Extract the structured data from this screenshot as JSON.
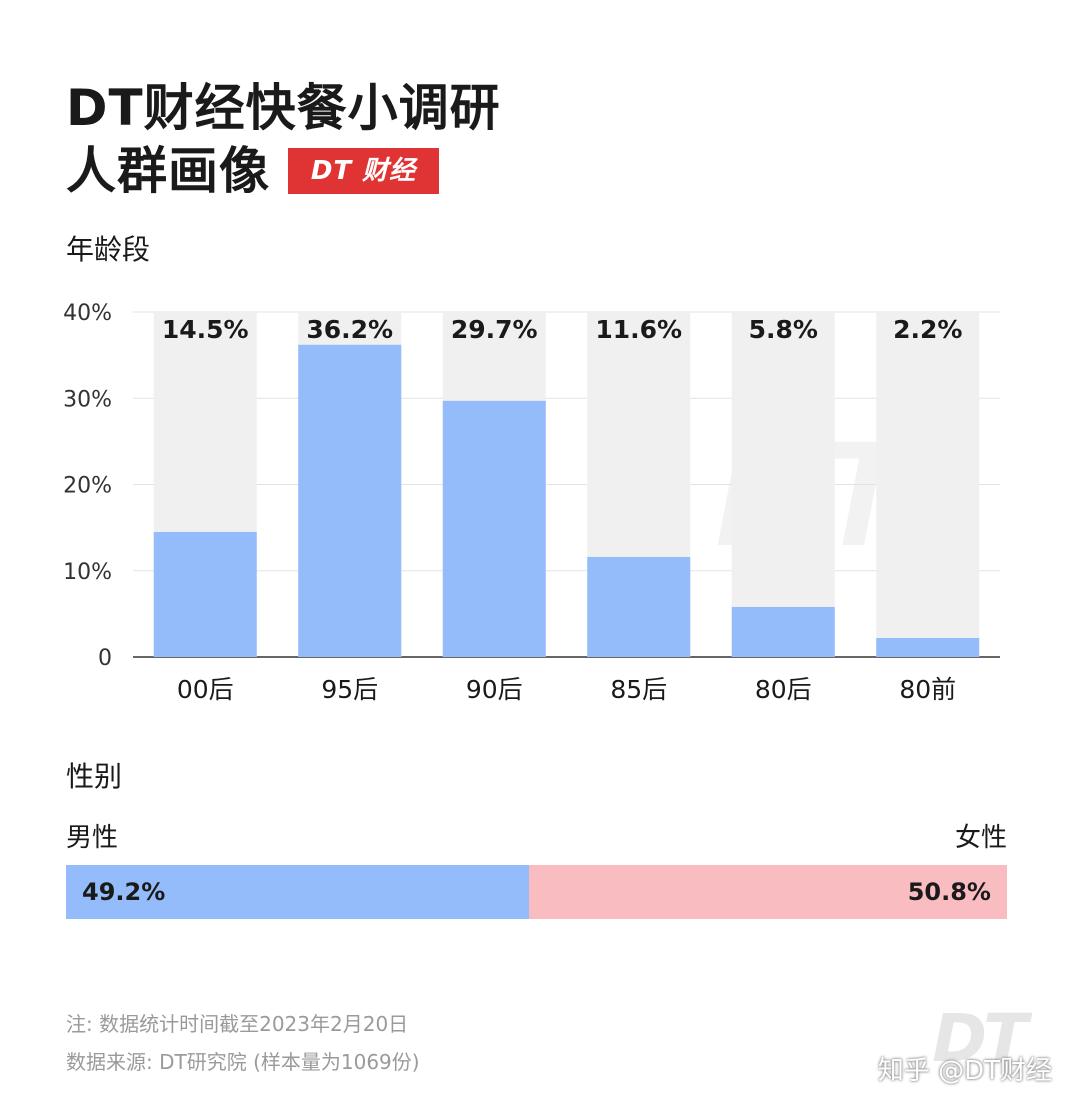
{
  "title": {
    "line1": "DT财经快餐小调研",
    "line2": "人群画像",
    "badge": "DT 财经"
  },
  "age_section_label": "年龄段",
  "gender_section_label": "性别",
  "colors": {
    "bar": "#94bbfa",
    "bar_track": "#f0f0f0",
    "male": "#94bbfa",
    "female": "#f9bcc0",
    "brand_red": "#e03434"
  },
  "chart_data": {
    "type": "bar",
    "categories": [
      "00后",
      "95后",
      "90后",
      "85后",
      "80后",
      "80前"
    ],
    "values": [
      14.5,
      36.2,
      29.7,
      11.6,
      5.8,
      2.2
    ],
    "value_labels": [
      "14.5%",
      "36.2%",
      "29.7%",
      "11.6%",
      "5.8%",
      "2.2%"
    ],
    "yticks": [
      0,
      10,
      20,
      30,
      40
    ],
    "ytick_labels": [
      "0",
      "10%",
      "20%",
      "30%",
      "40%"
    ],
    "ylim": [
      0,
      40
    ],
    "grid": true,
    "title": "年龄段",
    "xlabel": "",
    "ylabel": ""
  },
  "gender": {
    "male_label": "男性",
    "female_label": "女性",
    "male_value": 49.2,
    "female_value": 50.8,
    "male_value_label": "49.2%",
    "female_value_label": "50.8%"
  },
  "notes": {
    "line1": "注: 数据统计时间截至2023年2月20日",
    "line2": "数据来源: DT研究院 (样本量为1069份)"
  },
  "watermark": {
    "logo": "DT",
    "text": "知乎 @DT财经"
  }
}
